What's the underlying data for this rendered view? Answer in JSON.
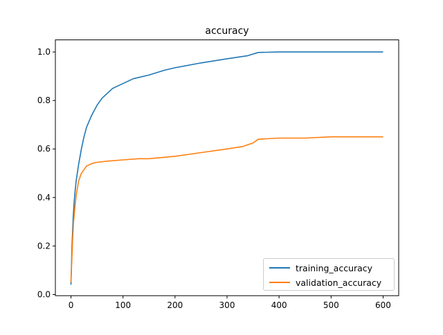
{
  "chart_data": {
    "type": "line",
    "title": "accuracy",
    "xlabel": "",
    "ylabel": "",
    "xlim": [
      -30,
      630
    ],
    "ylim": [
      -0.005,
      1.05
    ],
    "x_ticks": [
      0,
      100,
      200,
      300,
      400,
      500,
      600
    ],
    "y_ticks": [
      0.0,
      0.2,
      0.4,
      0.6,
      0.8,
      1.0
    ],
    "x_tick_labels": [
      "0",
      "100",
      "200",
      "300",
      "400",
      "500",
      "600"
    ],
    "y_tick_labels": [
      "0.0",
      "0.2",
      "0.4",
      "0.6",
      "0.8",
      "1.0"
    ],
    "legend_position": "lower-right",
    "series": [
      {
        "name": "training_accuracy",
        "color": "#1f77b4",
        "x": [
          0,
          2,
          4,
          6,
          8,
          10,
          15,
          20,
          25,
          30,
          40,
          50,
          60,
          70,
          80,
          100,
          120,
          150,
          180,
          200,
          250,
          300,
          340,
          360,
          400,
          450,
          500,
          550,
          600
        ],
        "values": [
          0.04,
          0.2,
          0.31,
          0.38,
          0.43,
          0.47,
          0.54,
          0.6,
          0.65,
          0.69,
          0.74,
          0.78,
          0.81,
          0.83,
          0.85,
          0.87,
          0.89,
          0.905,
          0.925,
          0.935,
          0.955,
          0.972,
          0.985,
          0.998,
          1.0,
          1.0,
          1.0,
          1.0,
          1.0
        ]
      },
      {
        "name": "validation_accuracy",
        "color": "#ff7f0e",
        "x": [
          0,
          3,
          5,
          8,
          10,
          15,
          20,
          30,
          40,
          50,
          70,
          100,
          130,
          150,
          200,
          250,
          300,
          330,
          350,
          360,
          400,
          450,
          500,
          550,
          600
        ],
        "values": [
          0.05,
          0.22,
          0.3,
          0.37,
          0.41,
          0.47,
          0.5,
          0.53,
          0.54,
          0.545,
          0.55,
          0.555,
          0.56,
          0.56,
          0.57,
          0.585,
          0.6,
          0.61,
          0.625,
          0.64,
          0.645,
          0.645,
          0.65,
          0.65,
          0.65
        ]
      }
    ]
  }
}
